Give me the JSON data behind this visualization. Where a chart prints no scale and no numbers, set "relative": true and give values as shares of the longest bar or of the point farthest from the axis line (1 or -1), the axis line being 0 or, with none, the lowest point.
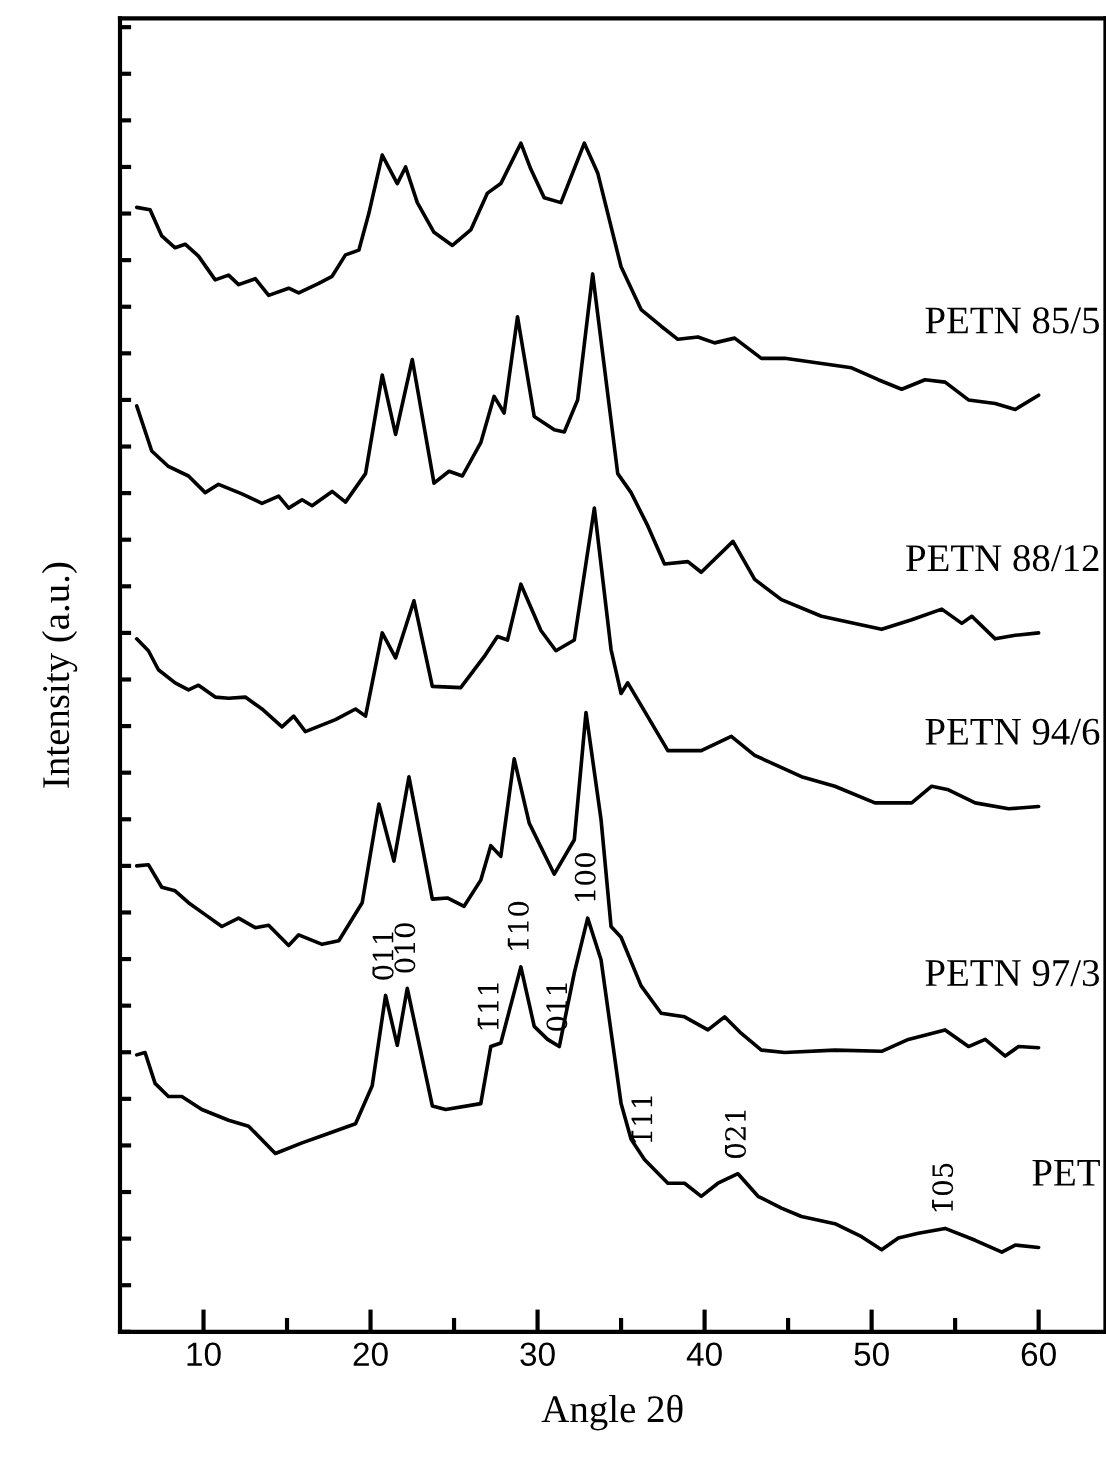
{
  "chart_data": {
    "type": "line",
    "relative": true,
    "xlabel": "Angle 2θ",
    "ylabel": "Intensity (a.u.)",
    "xlim": [
      5,
      64
    ],
    "xticks": [
      10,
      20,
      30,
      40,
      50,
      60
    ],
    "tick_labels": "x",
    "grid": false,
    "legend": false,
    "marker": "none",
    "line_style": "solid",
    "series": [
      {
        "name": "PETN 85/5",
        "color": "#000000",
        "x": [
          6,
          6.8,
          7.5,
          8.3,
          8.9,
          9.7,
          10.7,
          11.5,
          12.1,
          13.1,
          13.9,
          15.1,
          15.7,
          16.9,
          17.7,
          18.5,
          19.3,
          19.9,
          20.7,
          21.6,
          22.1,
          22.8,
          23.8,
          24.9,
          26.0,
          27.0,
          27.8,
          29.0,
          29.6,
          30.4,
          31.4,
          32.8,
          33.6,
          35.0,
          36.2,
          37.4,
          38.4,
          39.6,
          40.6,
          41.8,
          43.4,
          44.8,
          46.8,
          48.8,
          50.4,
          51.8,
          53.2,
          54.4,
          55.8,
          57.4,
          58.6,
          60
        ],
        "values": [
          0.946,
          0.944,
          0.922,
          0.912,
          0.915,
          0.905,
          0.885,
          0.889,
          0.881,
          0.886,
          0.872,
          0.878,
          0.874,
          0.882,
          0.888,
          0.906,
          0.91,
          0.941,
          0.99,
          0.966,
          0.98,
          0.95,
          0.925,
          0.914,
          0.927,
          0.958,
          0.966,
          1.0,
          0.978,
          0.954,
          0.95,
          1.0,
          0.975,
          0.896,
          0.86,
          0.846,
          0.835,
          0.837,
          0.832,
          0.836,
          0.819,
          0.819,
          0.815,
          0.811,
          0.801,
          0.793,
          0.801,
          0.799,
          0.784,
          0.781,
          0.776,
          0.788
        ]
      },
      {
        "name": "PETN 88/12",
        "color": "#000000",
        "x": [
          6,
          6.9,
          7.9,
          9.1,
          10.1,
          10.9,
          12.3,
          13.5,
          14.5,
          15.1,
          15.9,
          16.5,
          17.7,
          18.5,
          19.7,
          20.7,
          21.5,
          22.5,
          23.8,
          24.7,
          25.5,
          26.6,
          27.4,
          28.0,
          28.8,
          29.8,
          31.0,
          31.6,
          32.4,
          33.3,
          34.8,
          35.6,
          36.6,
          37.6,
          39.0,
          39.8,
          41.7,
          43.0,
          44.6,
          47.0,
          49.0,
          50.6,
          52.4,
          54.2,
          55.4,
          56.0,
          57.4,
          58.6,
          60
        ],
        "values": [
          0.779,
          0.741,
          0.728,
          0.72,
          0.706,
          0.713,
          0.705,
          0.697,
          0.703,
          0.693,
          0.7,
          0.695,
          0.707,
          0.698,
          0.722,
          0.805,
          0.755,
          0.818,
          0.714,
          0.724,
          0.72,
          0.748,
          0.787,
          0.773,
          0.854,
          0.77,
          0.759,
          0.757,
          0.784,
          0.89,
          0.722,
          0.706,
          0.678,
          0.646,
          0.648,
          0.639,
          0.665,
          0.633,
          0.616,
          0.602,
          0.596,
          0.591,
          0.599,
          0.608,
          0.596,
          0.602,
          0.583,
          0.586,
          0.588
        ]
      },
      {
        "name": "PETN 94/6",
        "color": "#000000",
        "x": [
          6,
          6.7,
          7.3,
          8.3,
          9.1,
          9.7,
          10.7,
          11.5,
          12.5,
          13.5,
          14.7,
          15.4,
          16.1,
          17.9,
          19.1,
          19.7,
          20.7,
          21.5,
          22.6,
          23.7,
          25.4,
          26.8,
          27.6,
          28.2,
          29.0,
          30.2,
          31.1,
          32.2,
          33.4,
          34.4,
          35.0,
          35.4,
          36.2,
          37.8,
          39.8,
          41.6,
          43.0,
          45.8,
          47.8,
          50.2,
          52.4,
          53.6,
          54.6,
          56.2,
          58.2,
          60
        ],
        "values": [
          0.583,
          0.573,
          0.557,
          0.546,
          0.54,
          0.544,
          0.534,
          0.533,
          0.534,
          0.524,
          0.509,
          0.518,
          0.505,
          0.515,
          0.524,
          0.518,
          0.588,
          0.567,
          0.615,
          0.543,
          0.542,
          0.568,
          0.585,
          0.582,
          0.629,
          0.59,
          0.573,
          0.582,
          0.693,
          0.574,
          0.537,
          0.546,
          0.527,
          0.489,
          0.489,
          0.501,
          0.485,
          0.467,
          0.459,
          0.445,
          0.445,
          0.459,
          0.456,
          0.445,
          0.44,
          0.442
        ]
      },
      {
        "name": "PETN 97/3",
        "color": "#000000",
        "x": [
          6,
          6.7,
          7.5,
          8.3,
          9.1,
          10.1,
          11.1,
          12.1,
          13.1,
          13.9,
          15.1,
          15.7,
          17.1,
          18.1,
          19.5,
          20.5,
          21.4,
          22.3,
          23.7,
          24.6,
          25.6,
          26.6,
          27.2,
          27.8,
          28.6,
          29.5,
          31.0,
          32.2,
          32.9,
          33.8,
          34.4,
          35.0,
          36.2,
          37.4,
          38.8,
          40.2,
          41.2,
          42.2,
          43.4,
          44.8,
          47.8,
          50.6,
          52.2,
          54.4,
          55.8,
          56.8,
          58.0,
          58.8,
          60
        ],
        "values": [
          0.392,
          0.393,
          0.374,
          0.371,
          0.361,
          0.351,
          0.341,
          0.348,
          0.34,
          0.342,
          0.325,
          0.334,
          0.326,
          0.329,
          0.361,
          0.444,
          0.396,
          0.467,
          0.364,
          0.365,
          0.358,
          0.38,
          0.409,
          0.4,
          0.482,
          0.428,
          0.385,
          0.414,
          0.521,
          0.431,
          0.341,
          0.332,
          0.291,
          0.268,
          0.265,
          0.254,
          0.265,
          0.251,
          0.237,
          0.235,
          0.237,
          0.236,
          0.246,
          0.254,
          0.24,
          0.246,
          0.232,
          0.24,
          0.239
        ]
      },
      {
        "name": "PET",
        "color": "#000000",
        "x": [
          6,
          6.5,
          7.1,
          7.9,
          8.7,
          9.9,
          11.5,
          12.7,
          14.3,
          15.9,
          17.1,
          19.1,
          20.1,
          20.9,
          21.6,
          22.2,
          23.7,
          24.5,
          26.6,
          27.2,
          27.8,
          29.0,
          29.8,
          30.6,
          31.3,
          32.2,
          33.0,
          33.8,
          35.0,
          35.6,
          36.4,
          37.8,
          38.8,
          39.8,
          40.8,
          42.0,
          43.2,
          44.6,
          45.8,
          47.8,
          49.4,
          50.6,
          51.6,
          52.8,
          54.4,
          56.2,
          57.8,
          58.6,
          60
        ],
        "values": [
          0.233,
          0.235,
          0.209,
          0.198,
          0.198,
          0.187,
          0.178,
          0.173,
          0.15,
          0.159,
          0.165,
          0.175,
          0.207,
          0.283,
          0.241,
          0.289,
          0.19,
          0.187,
          0.192,
          0.24,
          0.243,
          0.307,
          0.257,
          0.246,
          0.24,
          0.302,
          0.348,
          0.313,
          0.192,
          0.162,
          0.145,
          0.125,
          0.125,
          0.114,
          0.125,
          0.133,
          0.114,
          0.104,
          0.097,
          0.091,
          0.08,
          0.069,
          0.079,
          0.083,
          0.087,
          0.077,
          0.067,
          0.073,
          0.071
        ]
      }
    ],
    "annotations": [
      {
        "text": "0̄11",
        "x": 20.9,
        "y": 0.283
      },
      {
        "text": "010",
        "x": 22.2,
        "y": 0.289
      },
      {
        "text": "1̄11",
        "x": 27.2,
        "y": 0.24
      },
      {
        "text": "1̄10",
        "x": 29.0,
        "y": 0.307
      },
      {
        "text": "011",
        "x": 31.3,
        "y": 0.24
      },
      {
        "text": "100",
        "x": 33.0,
        "y": 0.348
      },
      {
        "text": "1̄11",
        "x": 36.4,
        "y": 0.145
      },
      {
        "text": "0̄21",
        "x": 42.0,
        "y": 0.133
      },
      {
        "text": "1̄05",
        "x": 54.4,
        "y": 0.087
      }
    ]
  }
}
